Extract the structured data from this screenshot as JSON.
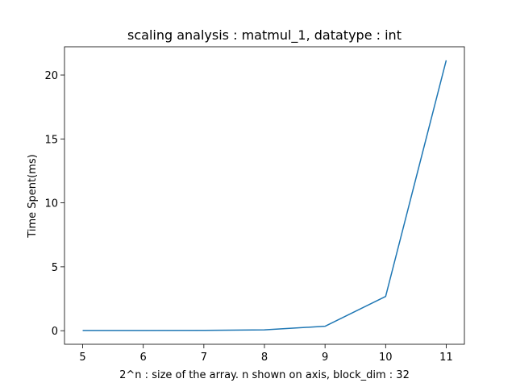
{
  "chart_data": {
    "type": "line",
    "title": "scaling analysis : matmul_1, datatype : int",
    "xlabel": "2^n : size of the array. n shown on axis, block_dim : 32",
    "ylabel": "Time Spent(ms)",
    "x": [
      5,
      6,
      7,
      8,
      9,
      10,
      11
    ],
    "series": [
      {
        "values": [
          0.02,
          0.02,
          0.03,
          0.07,
          0.35,
          2.68,
          21.15
        ],
        "color": "#1f77b4"
      }
    ],
    "xlim": [
      4.7,
      11.3
    ],
    "ylim": [
      -1.06,
      22.21
    ],
    "xticks": [
      "5",
      "6",
      "7",
      "8",
      "9",
      "10",
      "11"
    ],
    "yticks": [
      "0",
      "5",
      "10",
      "15",
      "20"
    ],
    "grid": false,
    "legend": "none"
  }
}
